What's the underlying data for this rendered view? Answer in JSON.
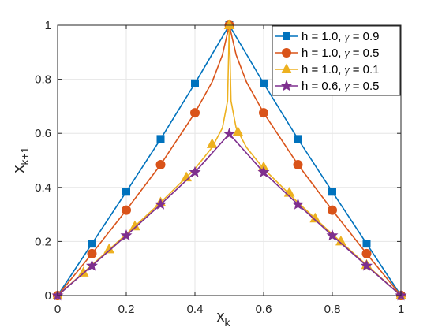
{
  "chart_data": {
    "type": "line",
    "title": "",
    "xlabel": {
      "main": "x",
      "sub": "k"
    },
    "ylabel": {
      "main": "x",
      "sub": "k+1"
    },
    "xlim": [
      0,
      1
    ],
    "ylim": [
      0,
      1
    ],
    "xticks": [
      "0",
      "0.2",
      "0.4",
      "0.6",
      "0.8",
      "1"
    ],
    "yticks": [
      "0",
      "0.2",
      "0.4",
      "0.6",
      "0.8",
      "1"
    ],
    "grid": true,
    "legend_position": "top-right",
    "series": [
      {
        "name": "h = 1.0, γ = 0.9",
        "legend": {
          "prefix": "h = 1.0, ",
          "gamma": "γ",
          "suffix": " = 0.9"
        },
        "color": "#0072BD",
        "marker": "square",
        "x": [
          0,
          0.1,
          0.2,
          0.3,
          0.4,
          0.5,
          0.6,
          0.7,
          0.8,
          0.9,
          1.0
        ],
        "y": [
          0,
          0.192,
          0.384,
          0.579,
          0.785,
          1.0,
          0.785,
          0.579,
          0.384,
          0.192,
          0
        ],
        "markers_x": [
          0,
          0.1,
          0.2,
          0.3,
          0.4,
          0.5,
          0.6,
          0.7,
          0.8,
          0.9,
          1.0
        ],
        "markers_y": [
          0,
          0.192,
          0.384,
          0.579,
          0.785,
          1.0,
          0.785,
          0.579,
          0.384,
          0.192,
          0
        ]
      },
      {
        "name": "h = 1.0, γ = 0.5",
        "legend": {
          "prefix": "h = 1.0, ",
          "gamma": "γ",
          "suffix": " = 0.5"
        },
        "color": "#D95319",
        "marker": "circle",
        "x": [
          0,
          0.1,
          0.2,
          0.3,
          0.4,
          0.45,
          0.48,
          0.5,
          0.52,
          0.55,
          0.6,
          0.7,
          0.8,
          0.9,
          1.0
        ],
        "y": [
          0,
          0.155,
          0.316,
          0.484,
          0.676,
          0.79,
          0.89,
          1.0,
          0.89,
          0.79,
          0.676,
          0.484,
          0.316,
          0.155,
          0
        ],
        "markers_x": [
          0,
          0.1,
          0.2,
          0.3,
          0.4,
          0.5,
          0.6,
          0.7,
          0.8,
          0.9,
          1.0
        ],
        "markers_y": [
          0,
          0.155,
          0.316,
          0.484,
          0.676,
          1.0,
          0.676,
          0.484,
          0.316,
          0.155,
          0
        ]
      },
      {
        "name": "h = 1.0, γ = 0.1",
        "legend": {
          "prefix": "h = 1.0, ",
          "gamma": "γ",
          "suffix": " = 0.1"
        },
        "color": "#EDB120",
        "marker": "triangle",
        "x": [
          0,
          0.1,
          0.2,
          0.3,
          0.4,
          0.45,
          0.48,
          0.495,
          0.5,
          0.505,
          0.52,
          0.55,
          0.6,
          0.7,
          0.8,
          0.9,
          1.0
        ],
        "y": [
          0,
          0.113,
          0.227,
          0.344,
          0.469,
          0.548,
          0.62,
          0.72,
          1.0,
          0.72,
          0.62,
          0.548,
          0.469,
          0.344,
          0.227,
          0.113,
          0
        ],
        "markers_x": [
          0,
          0.075,
          0.15,
          0.225,
          0.3,
          0.375,
          0.45,
          0.5,
          0.525,
          0.6,
          0.675,
          0.75,
          0.825,
          0.9,
          1.0
        ],
        "markers_y": [
          0,
          0.085,
          0.171,
          0.256,
          0.344,
          0.437,
          0.56,
          1.0,
          0.605,
          0.475,
          0.38,
          0.285,
          0.2,
          0.113,
          0
        ]
      },
      {
        "name": "h = 0.6, γ = 0.5",
        "legend": {
          "prefix": "h = 0.6, ",
          "gamma": "γ",
          "suffix": " = 0.5"
        },
        "color": "#7E2F8E",
        "marker": "star",
        "x": [
          0,
          0.1,
          0.2,
          0.3,
          0.4,
          0.5,
          0.6,
          0.7,
          0.8,
          0.9,
          1.0
        ],
        "y": [
          0,
          0.11,
          0.222,
          0.337,
          0.456,
          0.598,
          0.456,
          0.337,
          0.222,
          0.11,
          0
        ],
        "markers_x": [
          0,
          0.1,
          0.2,
          0.3,
          0.4,
          0.5,
          0.6,
          0.7,
          0.8,
          0.9,
          1.0
        ],
        "markers_y": [
          0,
          0.11,
          0.222,
          0.337,
          0.456,
          0.598,
          0.456,
          0.337,
          0.222,
          0.11,
          0
        ]
      }
    ]
  }
}
